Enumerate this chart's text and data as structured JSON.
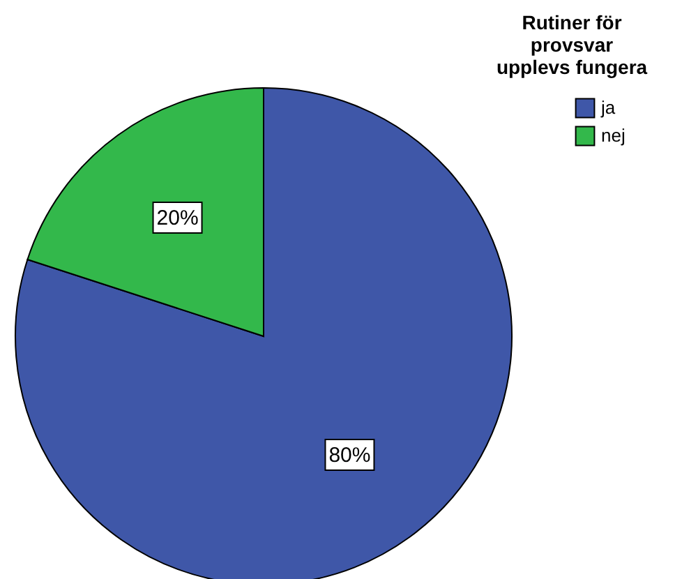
{
  "chart_data": {
    "type": "pie",
    "legend_title": "Rutiner för provsvar upplevs fungera",
    "categories": [
      "ja",
      "nej"
    ],
    "values": [
      80,
      20
    ],
    "colors": [
      "#3f57a8",
      "#33b84b"
    ],
    "value_labels": [
      "80%",
      "20%"
    ],
    "legend": "top right"
  }
}
